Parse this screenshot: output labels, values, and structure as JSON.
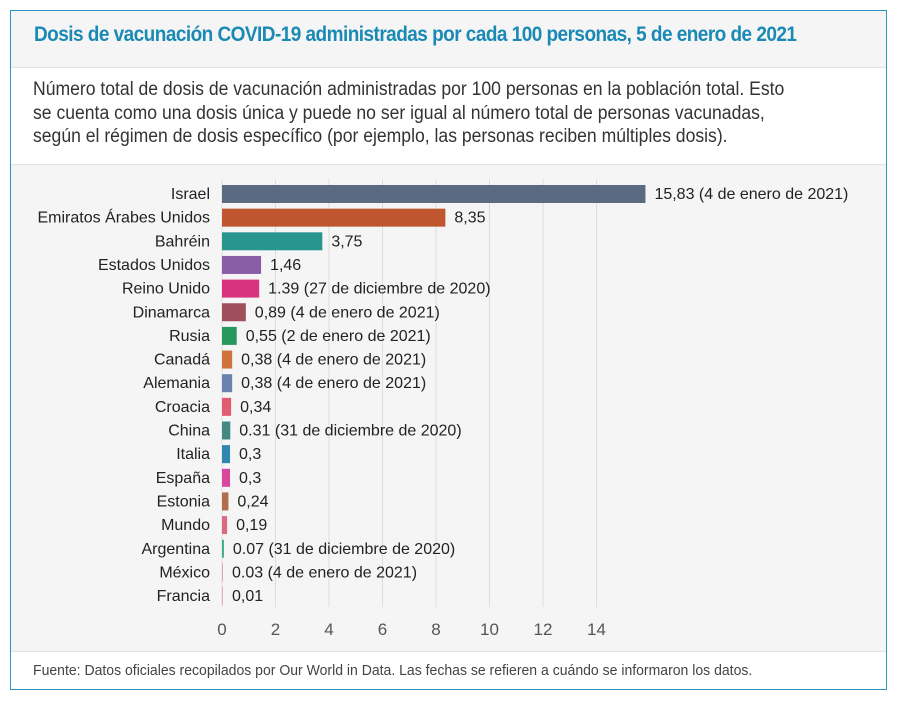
{
  "header": {
    "title": "Dosis de vacunación COVID-19 administradas por cada 100 personas, 5 de enero de 2021"
  },
  "description": {
    "lines": [
      "Número total de dosis de vacunación administradas por 100 personas en la población total. Esto",
      "se cuenta como una dosis única y puede no ser igual al número total de personas vacunadas,",
      "según el régimen de dosis específico (por ejemplo, las personas reciben múltiples dosis)."
    ]
  },
  "footer": {
    "source": "Fuente: Datos oficiales recopilados por Our World in Data. Las fechas se refieren a cuándo se informaron los datos."
  },
  "colors": {
    "title": "#1a8ab5",
    "border": "#2a95c0",
    "gridline": "#dddddd"
  },
  "chart_data": {
    "type": "bar",
    "orientation": "horizontal",
    "title": "Dosis de vacunación COVID-19 administradas por cada 100 personas, 5 de enero de 2021",
    "xlabel": "",
    "ylabel": "",
    "xlim": [
      0,
      16
    ],
    "grid": true,
    "x_ticks": [
      0,
      2,
      4,
      6,
      8,
      10,
      12,
      14
    ],
    "categories": [
      "Israel",
      "Emiratos Árabes Unidos",
      "Bahréin",
      "Estados Unidos",
      "Reino Unido",
      "Dinamarca",
      "Rusia",
      "Canadá",
      "Alemania",
      "Croacia",
      "China",
      "Italia",
      "España",
      "Estonia",
      "Mundo",
      "Argentina",
      "México",
      "Francia"
    ],
    "values": [
      15.83,
      8.35,
      3.75,
      1.46,
      1.39,
      0.89,
      0.55,
      0.38,
      0.38,
      0.34,
      0.31,
      0.3,
      0.3,
      0.24,
      0.19,
      0.07,
      0.03,
      0.01
    ],
    "value_labels": [
      "15,83 (4 de enero de 2021)",
      "8,35",
      "3,75",
      "1,46",
      "1.39 (27 de diciembre de 2020)",
      "0,89 (4 de enero de 2021)",
      "0,55 (2 de enero de 2021)",
      "0,38 (4 de enero de 2021)",
      "0,38 (4 de enero de 2021)",
      "0,34",
      "0.31 (31 de diciembre de 2020)",
      "0,3",
      "0,3",
      "0,24",
      "0,19",
      "0.07 (31 de diciembre de 2020)",
      "0.03 (4 de enero de 2021)",
      "0,01"
    ],
    "bar_colors": [
      "#5b6a80",
      "#c0562f",
      "#28968f",
      "#8a5ca6",
      "#d9327f",
      "#9e4f5b",
      "#27985d",
      "#d0733a",
      "#6a82ad",
      "#e05c6e",
      "#428a80",
      "#2d87b0",
      "#d8479c",
      "#b06e4d",
      "#d96b80",
      "#3ba98a",
      "#d9a5b8",
      "#e8b0b8"
    ]
  }
}
